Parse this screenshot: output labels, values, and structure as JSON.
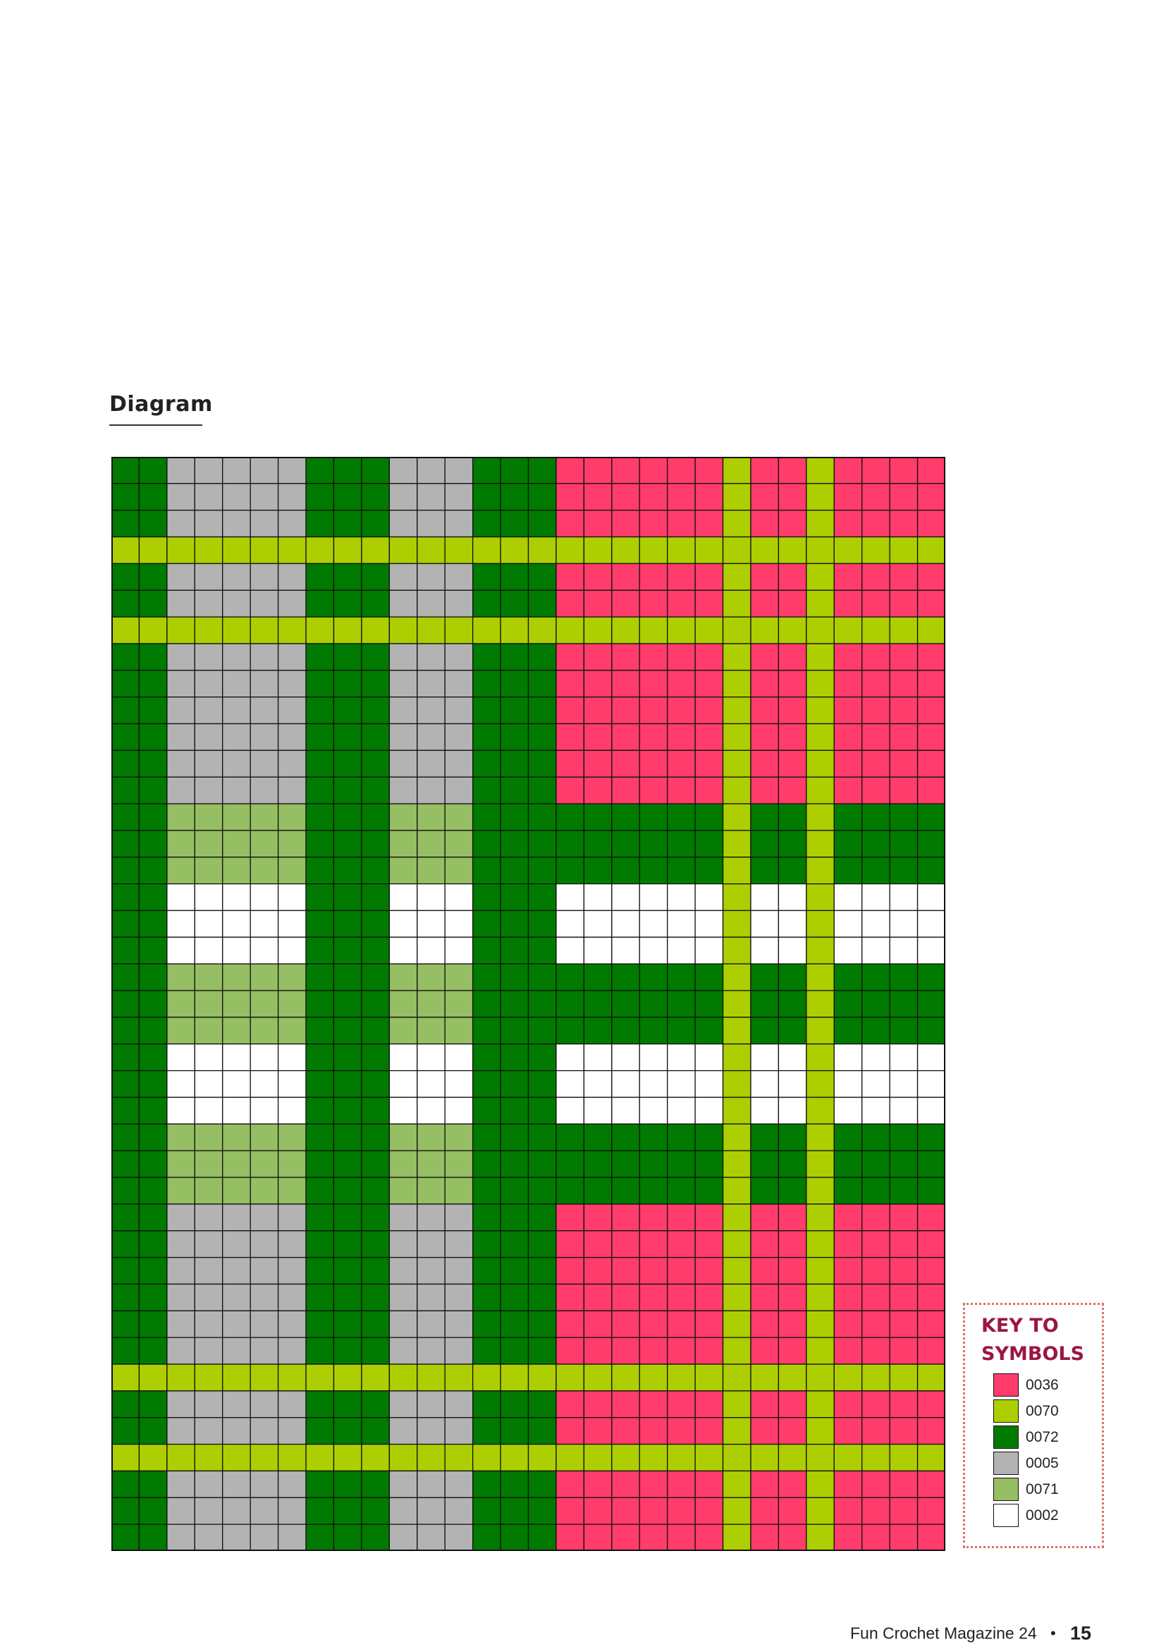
{
  "heading": "Diagram",
  "key": {
    "title": "KEY TO SYMBOLS",
    "items": [
      {
        "code": "0036",
        "color": "#ff3c6c"
      },
      {
        "code": "0070",
        "color": "#adcf01"
      },
      {
        "code": "0072",
        "color": "#007a00"
      },
      {
        "code": "0005",
        "color": "#b3b3b3"
      },
      {
        "code": "0071",
        "color": "#96be62"
      },
      {
        "code": "0002",
        "color": "#ffffff"
      }
    ]
  },
  "footer": {
    "magazine": "Fun Crochet Magazine 24",
    "bullet": "•",
    "page_number": "15"
  },
  "chart_data": {
    "type": "grid",
    "columns": 30,
    "rows": 41,
    "column_pattern": [
      "G",
      "G",
      "S",
      "S",
      "S",
      "S",
      "S",
      "G",
      "G",
      "G",
      "S",
      "S",
      "S",
      "G",
      "G",
      "G",
      "P",
      "P",
      "P",
      "P",
      "P",
      "P",
      "Y",
      "P",
      "P",
      "Y",
      "P",
      "P",
      "P",
      "P"
    ],
    "row_pattern": [
      "A",
      "A",
      "A",
      "Y",
      "A",
      "A",
      "Y",
      "A",
      "A",
      "A",
      "A",
      "A",
      "A",
      "B",
      "B",
      "B",
      "W",
      "W",
      "W",
      "B",
      "B",
      "B",
      "W",
      "W",
      "W",
      "B",
      "B",
      "B",
      "A",
      "A",
      "A",
      "A",
      "A",
      "A",
      "Y",
      "A",
      "A",
      "Y",
      "A",
      "A",
      "A"
    ],
    "cell_codes": {
      "A": {
        "G": "0072",
        "S": "0005",
        "P": "0036",
        "Y": "0070"
      },
      "B": {
        "G": "0072",
        "S": "0071",
        "P": "0072",
        "Y": "0070"
      },
      "W": {
        "G": "0072",
        "S": "0002",
        "P": "0002",
        "Y": "0070"
      },
      "Y": {
        "G": "0070",
        "S": "0070",
        "P": "0070",
        "Y": "0070"
      }
    },
    "colors": {
      "0036": "#ff3c6c",
      "0070": "#adcf01",
      "0072": "#007a00",
      "0005": "#b3b3b3",
      "0071": "#96be62",
      "0002": "#ffffff"
    },
    "grid_line_color": "#111111"
  }
}
